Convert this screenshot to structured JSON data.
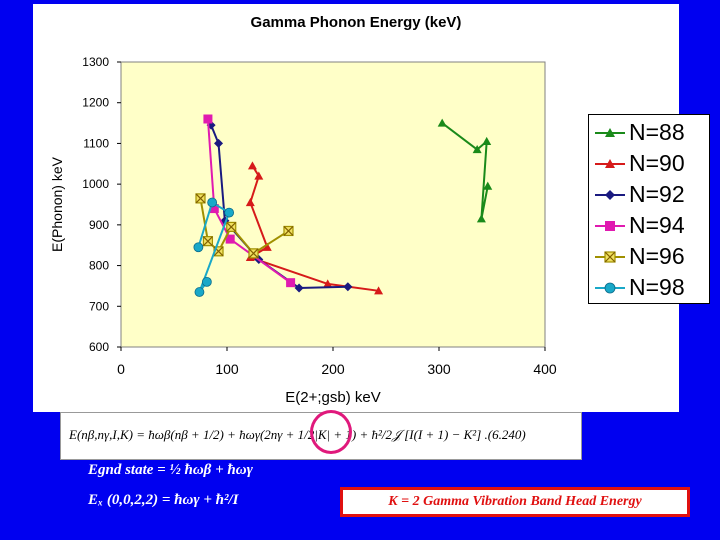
{
  "chart_data": {
    "type": "line",
    "title": "Gamma Phonon Energy (keV)",
    "xlabel": "E(2+;gsb) keV",
    "ylabel": "E(Phonon) keV",
    "xlim": [
      0,
      400
    ],
    "ylim": [
      600,
      1300
    ],
    "xticks": [
      "0",
      "100",
      "200",
      "300",
      "400"
    ],
    "yticks": [
      "600",
      "700",
      "800",
      "900",
      "1000",
      "1100",
      "1200",
      "1300"
    ],
    "grid": false,
    "plot_background": "#ffffc8",
    "legend_position": "right",
    "series": [
      {
        "name": "N=88",
        "color": "#1a8a1a",
        "marker": "triangle",
        "points": [
          [
            303,
            1150
          ],
          [
            336,
            1085
          ],
          [
            345,
            1105
          ],
          [
            340,
            915
          ],
          [
            346,
            995
          ]
        ]
      },
      {
        "name": "N=90",
        "color": "#d61a1a",
        "marker": "triangle",
        "points": [
          [
            124,
            1045
          ],
          [
            130,
            1020
          ],
          [
            122,
            955
          ],
          [
            138,
            845
          ],
          [
            122,
            820
          ],
          [
            195,
            755
          ],
          [
            243,
            738
          ]
        ]
      },
      {
        "name": "N=92",
        "color": "#1a1a80",
        "marker": "diamond",
        "points": [
          [
            85,
            1145
          ],
          [
            92,
            1100
          ],
          [
            98,
            910
          ],
          [
            130,
            815
          ],
          [
            168,
            745
          ],
          [
            214,
            748
          ]
        ]
      },
      {
        "name": "N=94",
        "color": "#e01ab0",
        "marker": "square",
        "points": [
          [
            82,
            1160
          ],
          [
            88,
            940
          ],
          [
            103,
            865
          ],
          [
            160,
            758
          ]
        ]
      },
      {
        "name": "N=96",
        "color": "#a09000",
        "marker": "x-square",
        "points": [
          [
            75,
            965
          ],
          [
            82,
            860
          ],
          [
            92,
            835
          ],
          [
            104,
            895
          ],
          [
            125,
            830
          ],
          [
            158,
            885
          ]
        ]
      },
      {
        "name": "N=98",
        "color": "#19a8c8",
        "marker": "circle",
        "points": [
          [
            73,
            845
          ],
          [
            86,
            955
          ],
          [
            102,
            930
          ],
          [
            74,
            735
          ],
          [
            81,
            760
          ]
        ]
      }
    ]
  },
  "formula": {
    "main": "E(nβ,nγ,I,K) = ħωβ(nβ + 1/2) + ħωγ(2nγ + 1/2|K| + 1) + ħ²/2𝒥 [I(I + 1) − K²] .(6.240)"
  },
  "equations": {
    "ground_state": "Egnd state = ½ ħωβ + ħωγ",
    "excited": "Eₓ (0,0,2,2) = ħωγ + ħ²/I"
  },
  "callout": {
    "text": "K = 2  Gamma Vibration Band Head Energy"
  }
}
